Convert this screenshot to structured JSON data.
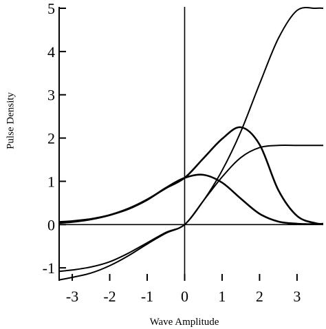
{
  "chart_data": {
    "type": "line",
    "xlabel": "Wave Amplitude",
    "ylabel": "Pulse Density",
    "xlim": [
      -3.35,
      3.7
    ],
    "ylim": [
      -1.3,
      5.0
    ],
    "x_ticks": [
      -3,
      -2,
      -1,
      0,
      1,
      2,
      3
    ],
    "x_tick_labels": [
      "-3",
      "-2",
      "-1",
      "0",
      "1",
      "2",
      "3"
    ],
    "y_ticks": [
      -1,
      0,
      1,
      2,
      3,
      4,
      5
    ],
    "y_tick_labels": [
      "-1",
      "0",
      "1",
      "2",
      "3",
      "4",
      "5"
    ],
    "grid": false,
    "reference_lines": {
      "x": 0,
      "y": 0
    },
    "series": [
      {
        "x": [
          -3.35,
          -3,
          -2.5,
          -2,
          -1.5,
          -1,
          -0.5,
          0,
          0.5,
          1,
          1.5,
          2,
          2.5,
          3,
          3.5,
          3.7
        ],
        "y": [
          0.06,
          0.08,
          0.13,
          0.22,
          0.36,
          0.57,
          0.85,
          1.08,
          1.15,
          0.97,
          0.6,
          0.25,
          0.07,
          0.02,
          0.01,
          0.01
        ]
      },
      {
        "x": [
          -3.35,
          -3,
          -2.5,
          -2,
          -1.5,
          -1,
          -0.5,
          0,
          0.5,
          1,
          1.5,
          2,
          2.5,
          3,
          3.5,
          3.7
        ],
        "y": [
          0.04,
          0.06,
          0.12,
          0.22,
          0.37,
          0.58,
          0.84,
          1.08,
          1.53,
          1.98,
          2.25,
          1.85,
          0.8,
          0.2,
          0.03,
          0.02
        ]
      },
      {
        "x": [
          -3.35,
          -3,
          -2.5,
          -2,
          -1.5,
          -1,
          -0.5,
          0,
          0.5,
          1,
          1.5,
          2,
          2.5,
          3,
          3.5,
          3.7
        ],
        "y": [
          -1.28,
          -1.22,
          -1.12,
          -0.95,
          -0.72,
          -0.45,
          -0.2,
          0.0,
          0.55,
          1.1,
          1.55,
          1.78,
          1.83,
          1.83,
          1.83,
          1.83
        ]
      },
      {
        "x": [
          -3.35,
          -3,
          -2.5,
          -2,
          -1.5,
          -1,
          -0.5,
          0,
          0.5,
          1,
          1.5,
          2,
          2.5,
          3,
          3.5,
          3.7
        ],
        "y": [
          -1.08,
          -1.05,
          -0.98,
          -0.86,
          -0.66,
          -0.42,
          -0.18,
          0.0,
          0.55,
          1.25,
          2.15,
          3.25,
          4.3,
          4.95,
          5.0,
          5.0
        ]
      }
    ]
  }
}
